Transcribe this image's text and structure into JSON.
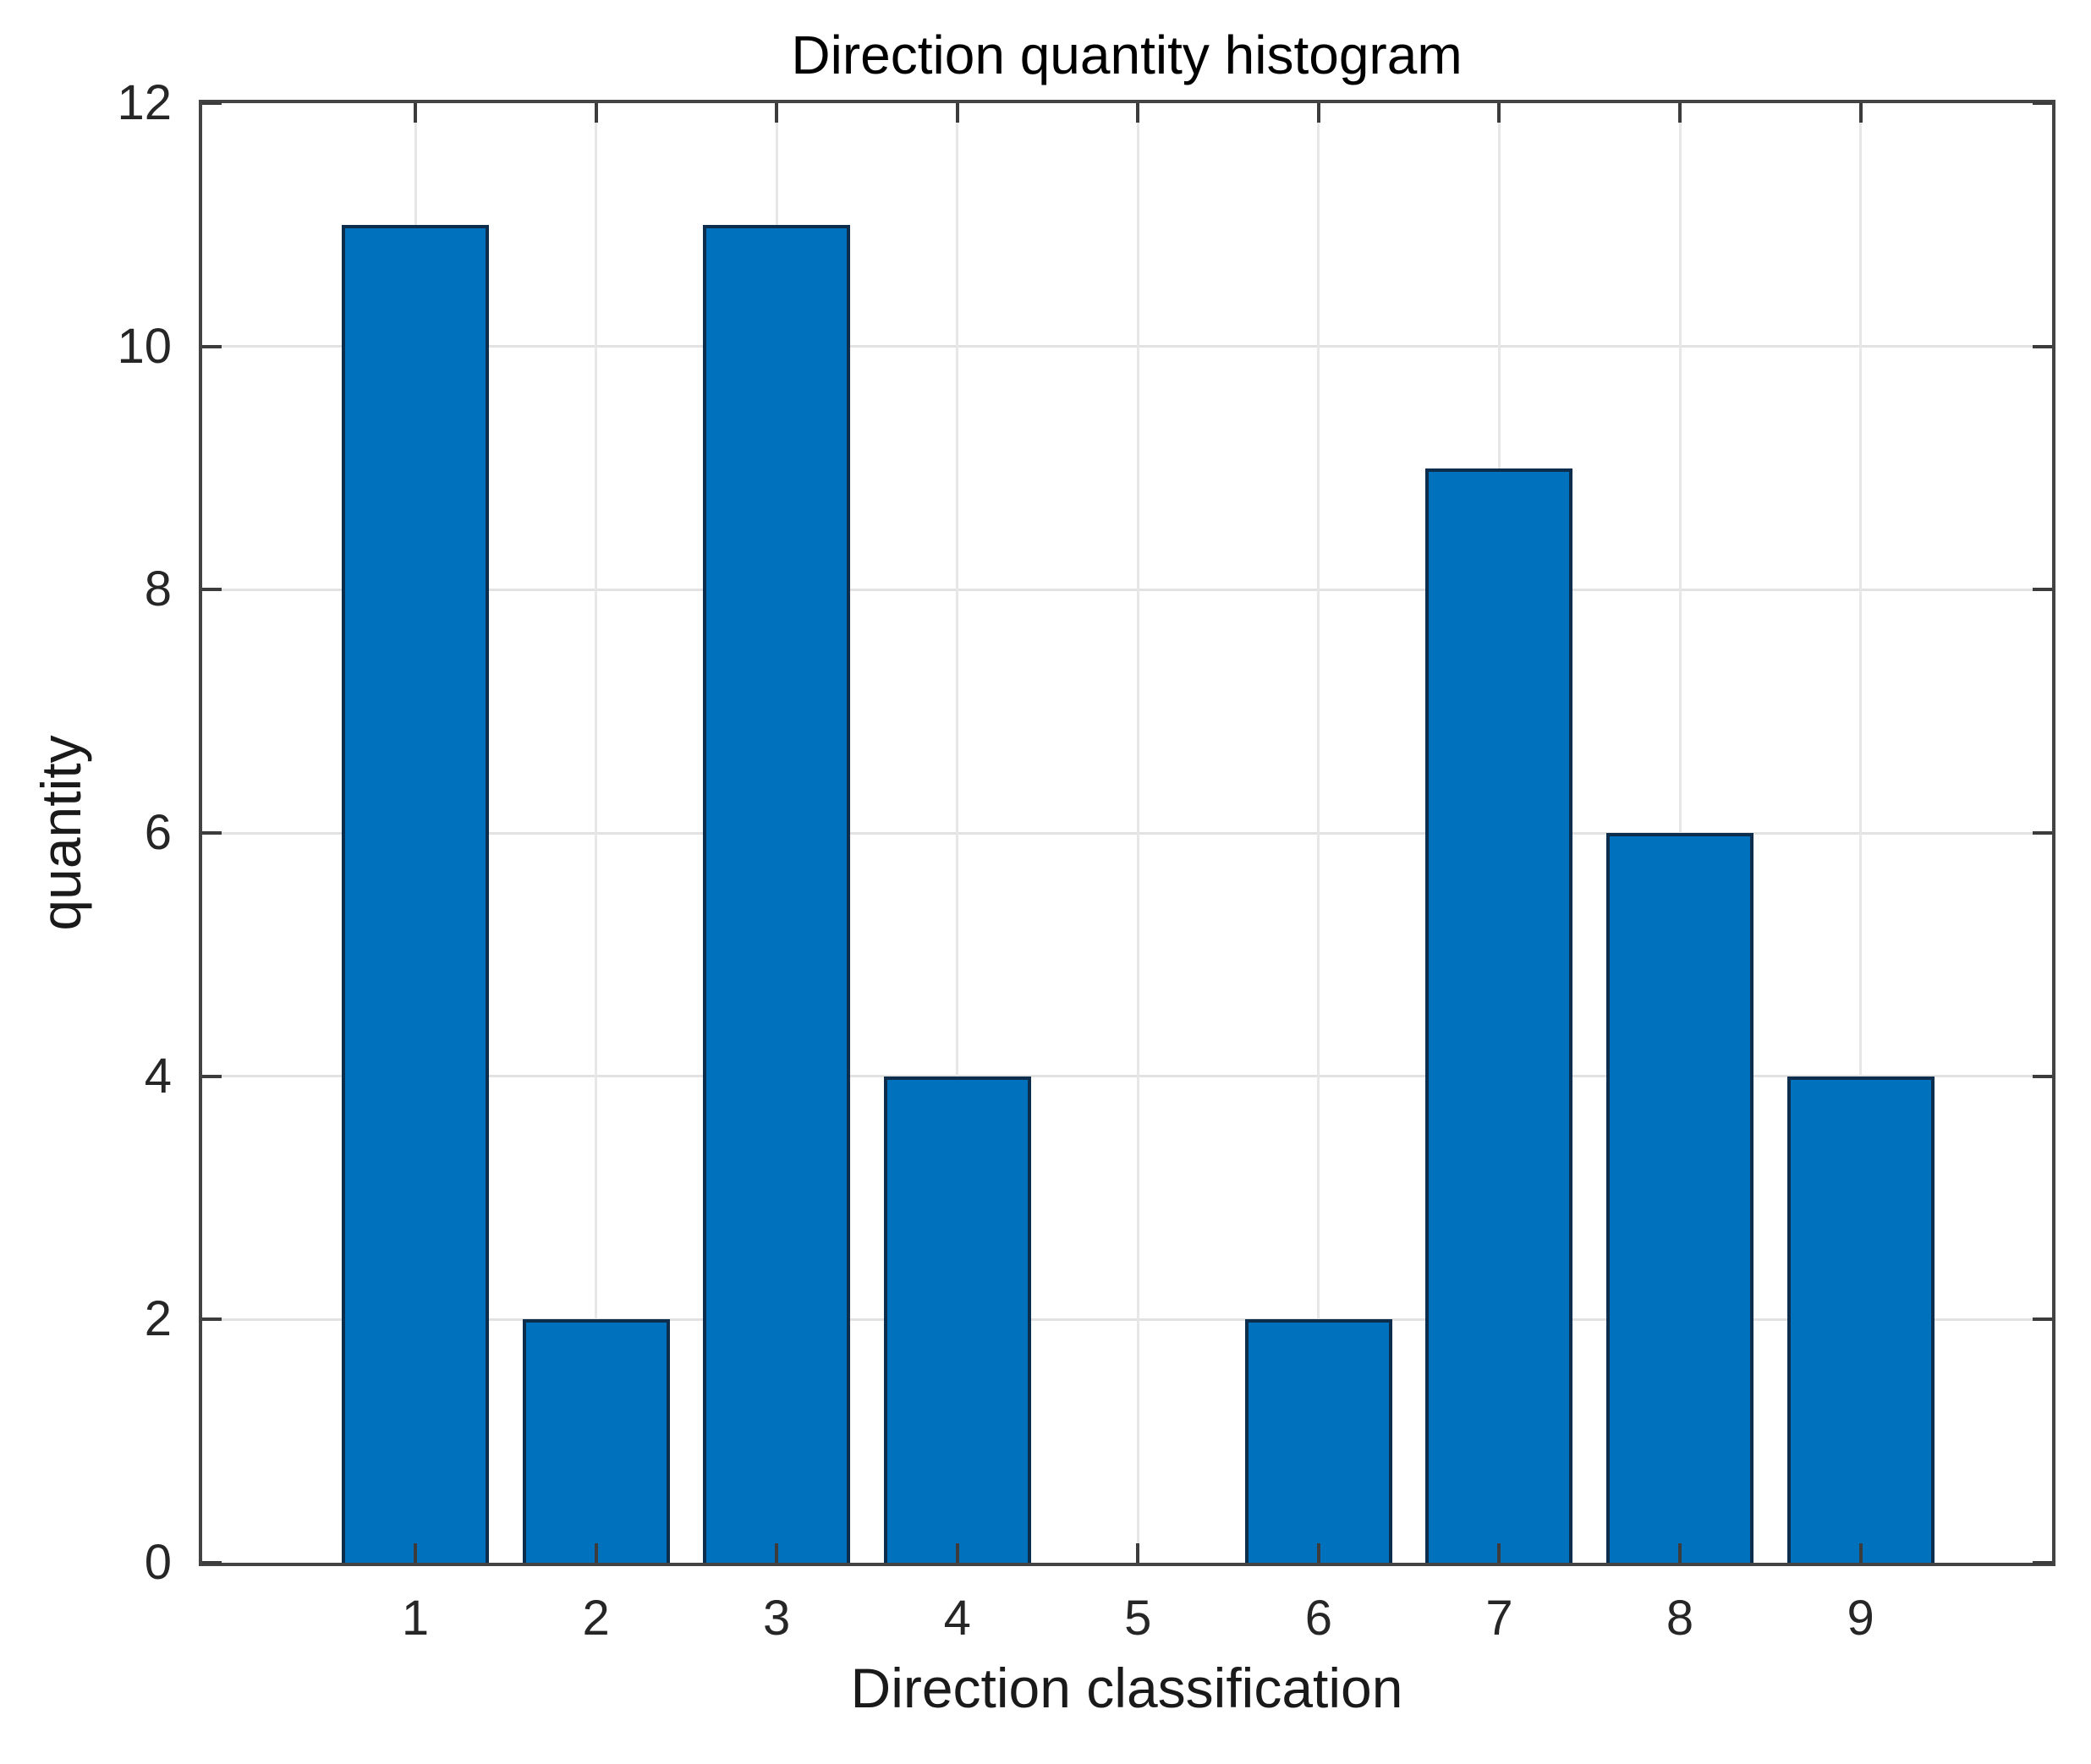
{
  "figure": {
    "background": "#ffffff"
  },
  "chart_data": {
    "type": "bar",
    "title": "Direction quantity histogram",
    "xlabel": "Direction classification",
    "ylabel": "quantity",
    "categories": [
      1,
      2,
      3,
      4,
      5,
      6,
      7,
      8,
      9
    ],
    "values": [
      11,
      2,
      11,
      4,
      0,
      2,
      9,
      6,
      4
    ],
    "xticks": [
      1,
      2,
      3,
      4,
      5,
      6,
      7,
      8,
      9
    ],
    "yticks": [
      0,
      2,
      4,
      6,
      8,
      10,
      12
    ],
    "xlim": [
      -0.18,
      10.06
    ],
    "ylim": [
      0,
      12
    ],
    "grid": true,
    "legend_position": "none",
    "colors": {
      "bar_fill": "#0072BD",
      "bar_edge": "#0D2D4D",
      "grid_h": "#e2e2e2",
      "grid_v": "#e7e7e7",
      "axis_frame": "#434343",
      "tick_mark": "#3c3c3c",
      "tick_text": "#262626",
      "title_text": "#000000"
    }
  }
}
